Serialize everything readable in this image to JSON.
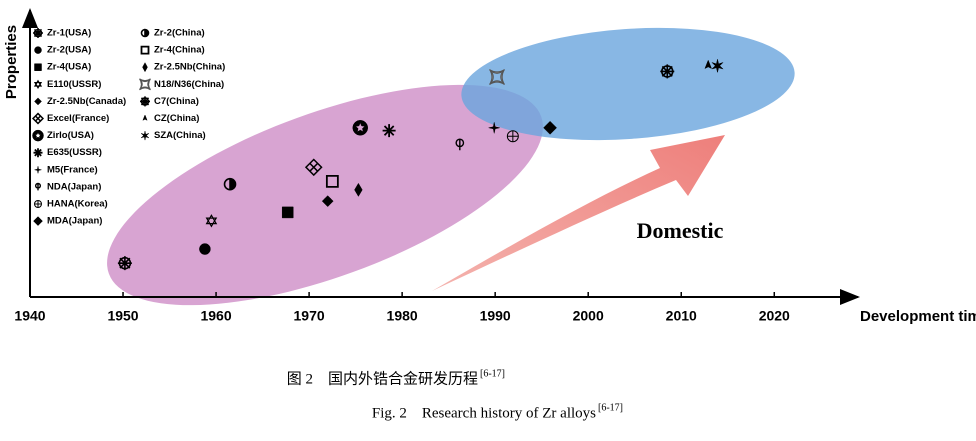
{
  "chart_data": {
    "type": "scatter",
    "xlabel": "Development time",
    "ylabel": "Properties",
    "xlim": [
      1940,
      2029
    ],
    "ylim": [
      0,
      100
    ],
    "xticks": [
      1940,
      1950,
      1960,
      1970,
      1980,
      1990,
      2000,
      2010,
      2020
    ],
    "annotation": "Domestic",
    "color": "#000000",
    "series": [
      {
        "name": "Zr-1(USA)",
        "marker": "gear",
        "x": [
          1950.2
        ],
        "values": [
          12
        ]
      },
      {
        "name": "Zr-2(USA)",
        "marker": "circle",
        "x": [
          1958.8
        ],
        "values": [
          17
        ]
      },
      {
        "name": "Zr-4(USA)",
        "marker": "square",
        "x": [
          1967.7
        ],
        "values": [
          30
        ]
      },
      {
        "name": "E110(USSR)",
        "marker": "hexagram",
        "x": [
          1959.5
        ],
        "values": [
          27
        ]
      },
      {
        "name": "Zr-2.5Nb(Canada)",
        "marker": "four-diamonds",
        "x": [
          1972.0
        ],
        "values": [
          34
        ]
      },
      {
        "name": "Excel(France)",
        "marker": "boxed-cross",
        "x": [
          1970.5
        ],
        "values": [
          46
        ]
      },
      {
        "name": "Zirlo(USA)",
        "marker": "ring-star",
        "x": [
          1975.5
        ],
        "values": [
          60
        ]
      },
      {
        "name": "E635(USSR)",
        "marker": "asterisk",
        "x": [
          1978.6
        ],
        "values": [
          59
        ]
      },
      {
        "name": "M5(France)",
        "marker": "plus-star",
        "x": [
          1989.9
        ],
        "values": [
          60
        ]
      },
      {
        "name": "NDA(Japan)",
        "marker": "pin",
        "x": [
          1986.2
        ],
        "values": [
          54
        ]
      },
      {
        "name": "HANA(Korea)",
        "marker": "ring-cross",
        "x": [
          1991.9
        ],
        "values": [
          57
        ]
      },
      {
        "name": "MDA(Japan)",
        "marker": "diamond",
        "x": [
          1995.9
        ],
        "values": [
          60
        ]
      },
      {
        "name": "Zr-2(China)",
        "marker": "half-circle",
        "x": [
          1961.5
        ],
        "values": [
          40
        ]
      },
      {
        "name": "Zr-4(China)",
        "marker": "open-square",
        "x": [
          1972.5
        ],
        "values": [
          41
        ]
      },
      {
        "name": "Zr-2.5Nb(China)",
        "marker": "thin-diamond",
        "x": [
          1975.3
        ],
        "values": [
          38
        ]
      },
      {
        "name": "N18/N36(China)",
        "marker": "bowtie",
        "x": [
          1990.2
        ],
        "values": [
          78
        ]
      },
      {
        "name": "C7(China)",
        "marker": "gear",
        "x": [
          2008.5
        ],
        "values": [
          80
        ]
      },
      {
        "name": "CZ(China)",
        "marker": "tri",
        "x": [
          2012.9
        ],
        "values": [
          82
        ]
      },
      {
        "name": "SZA(China)",
        "marker": "star",
        "x": [
          2013.9
        ],
        "values": [
          82
        ]
      }
    ]
  },
  "caption": {
    "zh": "图 2　国内外锆合金研发历程",
    "zh_ref": "[6-17]",
    "en": "Fig. 2　Research history of Zr alloys",
    "en_ref": "[6-17]"
  }
}
